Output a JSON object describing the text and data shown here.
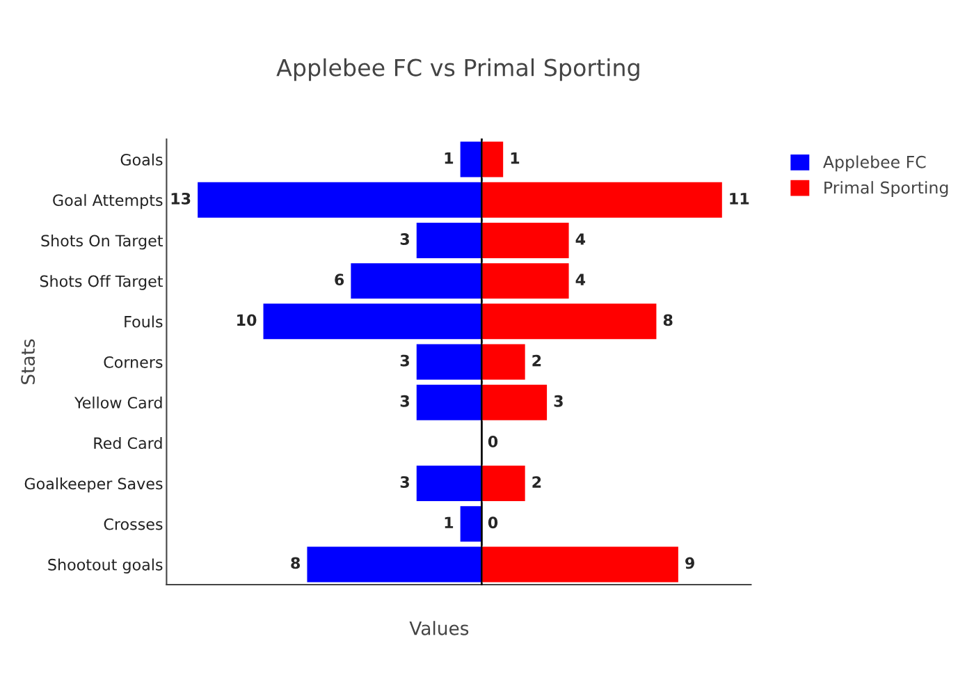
{
  "chart_data": [
    {
      "type": "bar",
      "orientation": "horizontal",
      "title": "Applebee FC vs Primal Sporting",
      "xlabel": "Values",
      "ylabel": "Stats",
      "categories": [
        "Goals",
        "Goal Attempts",
        "Shots On Target",
        "Shots Off Target",
        "Fouls",
        "Corners",
        "Yellow Card",
        "Red Card",
        "Goalkeeper Saves",
        "Crosses",
        "Shootout goals"
      ],
      "series": [
        {
          "name": "Applebee FC",
          "color": "#0000ff",
          "values": [
            1,
            13,
            3,
            6,
            10,
            3,
            3,
            null,
            3,
            1,
            8
          ]
        }
      ],
      "data_labels": true,
      "xlim": [
        14.4,
        0
      ],
      "legend": "top right",
      "grid": false,
      "tick_labels": "y"
    },
    {
      "type": "bar",
      "orientation": "horizontal",
      "series": [
        {
          "name": "Primal Sporting",
          "color": "#ff0000",
          "values": [
            1,
            11,
            4,
            4,
            8,
            2,
            3,
            0,
            2,
            0,
            9
          ]
        }
      ],
      "data_labels": true,
      "xlim": [
        0,
        12.3
      ],
      "legend": "top right",
      "grid": false,
      "tick_labels": false
    }
  ]
}
